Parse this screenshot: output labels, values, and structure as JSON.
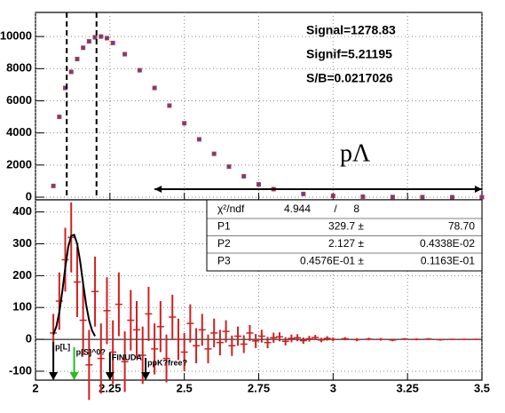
{
  "chart_data": [
    {
      "type": "scatter",
      "x": [
        2.06,
        2.08,
        2.1,
        2.12,
        2.14,
        2.16,
        2.18,
        2.2,
        2.22,
        2.24,
        2.26,
        2.3,
        2.35,
        2.4,
        2.45,
        2.5,
        2.55,
        2.6,
        2.65,
        2.7,
        2.75,
        2.8,
        2.9,
        3.0,
        3.1,
        3.2,
        3.3,
        3.4,
        3.5
      ],
      "series": [
        {
          "color": "#3050c0",
          "edge_color": "#d03030",
          "values": [
            700,
            5000,
            6800,
            7800,
            8600,
            9300,
            9700,
            9950,
            10000,
            9900,
            9600,
            8900,
            7900,
            6800,
            5700,
            4600,
            3600,
            2700,
            1900,
            1300,
            800,
            500,
            200,
            80,
            30,
            10,
            5,
            0,
            0
          ]
        }
      ],
      "xlim": [
        2,
        3.5
      ],
      "xticks": [
        2,
        2.25,
        2.5,
        2.75,
        3,
        3.25,
        3.5
      ],
      "ylim": [
        0,
        11500
      ],
      "yticks": [
        0,
        2000,
        4000,
        6000,
        8000,
        10000
      ],
      "grid": true,
      "vlines": [
        2.105,
        2.205
      ],
      "arrow_x": [
        2.4,
        3.5
      ],
      "arrow_y": 500,
      "annotations": [
        "Signal=1278.83",
        "Signif=5.21195",
        "S/B=0.0217026"
      ],
      "region_label": "pΛ"
    },
    {
      "type": "errorbar",
      "x": [
        2.06,
        2.08,
        2.1,
        2.12,
        2.14,
        2.16,
        2.18,
        2.2,
        2.22,
        2.24,
        2.26,
        2.28,
        2.3,
        2.32,
        2.34,
        2.36,
        2.38,
        2.4,
        2.42,
        2.44,
        2.46,
        2.48,
        2.5,
        2.52,
        2.54,
        2.56,
        2.58,
        2.6,
        2.62,
        2.64,
        2.66,
        2.68,
        2.7,
        2.72,
        2.74,
        2.76,
        2.78,
        2.8,
        2.82,
        2.84,
        2.86,
        2.88,
        2.9,
        2.92,
        2.94,
        2.96,
        2.98,
        3.0,
        3.04,
        3.08,
        3.12,
        3.16,
        3.2,
        3.24,
        3.28,
        3.32,
        3.36,
        3.4,
        3.44,
        3.48
      ],
      "series": [
        {
          "color": "#d02020",
          "values": [
            20,
            120,
            250,
            320,
            180,
            60,
            -80,
            150,
            -60,
            90,
            -40,
            110,
            -70,
            60,
            30,
            -50,
            80,
            -30,
            40,
            -60,
            70,
            0,
            -40,
            50,
            -20,
            30,
            -30,
            20,
            -10,
            25,
            -20,
            10,
            -15,
            20,
            -5,
            10,
            -10,
            5,
            8,
            -6,
            3,
            5,
            -4,
            2,
            6,
            -2,
            3,
            0,
            2,
            -1,
            1,
            0,
            -2,
            1,
            0,
            1,
            -1,
            0,
            0,
            0
          ],
          "errors": [
            60,
            90,
            100,
            110,
            110,
            110,
            110,
            110,
            110,
            105,
            100,
            100,
            95,
            95,
            90,
            90,
            85,
            80,
            80,
            75,
            70,
            65,
            60,
            60,
            55,
            50,
            45,
            45,
            40,
            35,
            32,
            30,
            28,
            25,
            22,
            20,
            18,
            16,
            14,
            13,
            12,
            11,
            10,
            9,
            8,
            7,
            7,
            6,
            5,
            5,
            4,
            4,
            4,
            3,
            3,
            3,
            3,
            2,
            2,
            2
          ]
        }
      ],
      "fit": {
        "color": "#000000",
        "x": [
          2.06,
          2.07,
          2.08,
          2.09,
          2.1,
          2.11,
          2.12,
          2.13,
          2.14,
          2.15,
          2.16,
          2.17,
          2.18,
          2.19,
          2.2
        ],
        "values": [
          15,
          40,
          85,
          150,
          225,
          290,
          325,
          328,
          300,
          245,
          175,
          110,
          60,
          28,
          10
        ]
      },
      "xlim": [
        2,
        3.5
      ],
      "xticks": [
        2,
        2.25,
        2.5,
        2.75,
        3,
        3.25,
        3.5
      ],
      "ylim": [
        -128,
        424
      ],
      "yticks": [
        -100,
        0,
        100,
        200,
        300,
        400
      ],
      "grid": true,
      "stats_box": {
        "rows": [
          [
            "χ²/ndf",
            "4.944",
            "/",
            "8"
          ],
          [
            "P1",
            "329.7 ±",
            "78.70"
          ],
          [
            "P2",
            "2.127 ±",
            "0.4338E-02"
          ],
          [
            "P3",
            "0.4576E-01 ±",
            "0.1163E-01"
          ]
        ]
      },
      "markers": [
        {
          "label": "p[L]",
          "x": 2.06,
          "color": "#000000"
        },
        {
          "label": "p[S]^0?",
          "x": 2.13,
          "color": "#20c020"
        },
        {
          "label": "FINUDA",
          "x": 2.25,
          "color": "#000000"
        },
        {
          "label": "ppK?free?",
          "x": 2.37,
          "color": "#000000"
        }
      ]
    }
  ]
}
